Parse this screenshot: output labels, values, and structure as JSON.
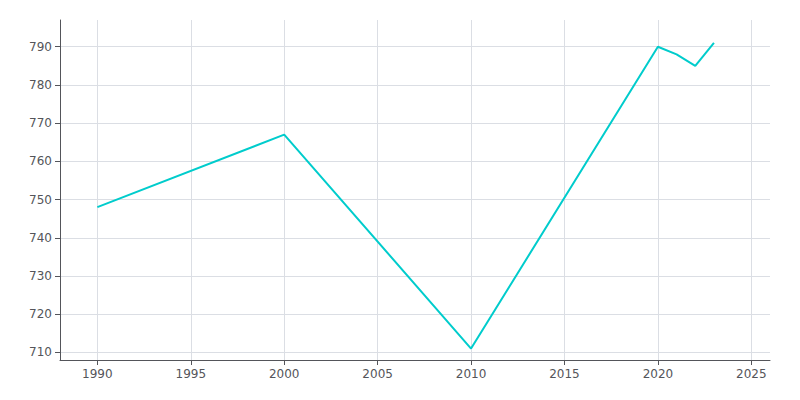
{
  "chart_data": {
    "type": "line",
    "x": [
      1990,
      2000,
      2010,
      2020,
      2021,
      2022,
      2023
    ],
    "values": [
      748,
      767,
      711,
      790,
      788,
      785,
      791
    ],
    "color": "#00CCCC",
    "xlim": [
      1988,
      2026
    ],
    "ylim": [
      708,
      797
    ],
    "xticks": [
      1990,
      1995,
      2000,
      2005,
      2010,
      2015,
      2020,
      2025
    ],
    "yticks": [
      710,
      720,
      730,
      740,
      750,
      760,
      770,
      780,
      790
    ],
    "grid": true
  }
}
